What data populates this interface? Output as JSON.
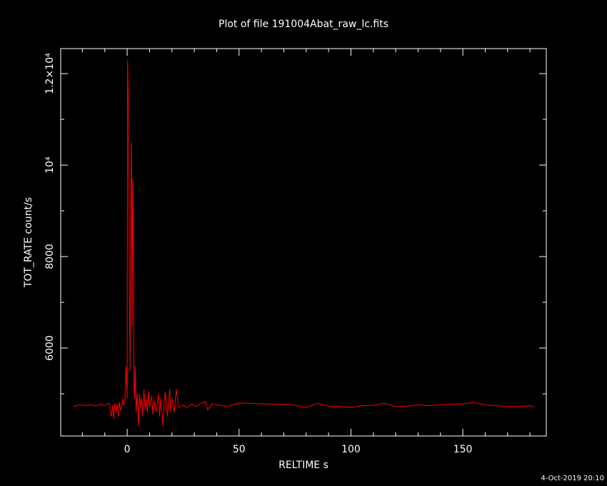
{
  "chart_data": {
    "type": "line",
    "title": "Plot of file 191004Abat_raw_lc.fits",
    "x_label": "RELTIME  s",
    "y_label": "TOT_RATE  count/s",
    "timestamp": "4-Oct-2019 20:10",
    "xlim": [
      -29.7,
      187.3
    ],
    "ylim": [
      4078,
      12547
    ],
    "xticks": [
      0,
      50,
      100,
      150
    ],
    "xminorticks": [
      -20,
      -10,
      10,
      20,
      30,
      40,
      60,
      70,
      80,
      90,
      110,
      120,
      130,
      140,
      160,
      170,
      180
    ],
    "yticks": [
      6000,
      8000,
      {
        "value": 10000,
        "label": "10⁴"
      },
      {
        "value": 12000,
        "label": "1.2×10⁴"
      }
    ],
    "yminorticks": [
      5000,
      7000,
      9000,
      11000
    ],
    "color": "#ff0000",
    "x": [
      -24,
      -22,
      -20,
      -18,
      -16,
      -14,
      -12,
      -10,
      -9,
      -8,
      -7,
      -6.5,
      -6,
      -5.5,
      -5,
      -4.5,
      -4,
      -3.5,
      -3,
      -2.5,
      -2,
      -1.5,
      -1,
      -0.5,
      0,
      0.2,
      0.5,
      0.8,
      1,
      1.3,
      1.6,
      1.9,
      2.2,
      2.5,
      2.8,
      3,
      3.3,
      3.6,
      4,
      4.5,
      5,
      5.5,
      6,
      6.5,
      7,
      7.5,
      8,
      8.5,
      9,
      9.5,
      10,
      11,
      11.5,
      12,
      13,
      14,
      14.5,
      15,
      16,
      16.5,
      17,
      18,
      19,
      19.5,
      20,
      21,
      22,
      23,
      25,
      27,
      29,
      31,
      33,
      35,
      36,
      38,
      40,
      45,
      50,
      55,
      60,
      70,
      75,
      80,
      85,
      90,
      95,
      100,
      105,
      110,
      115,
      120,
      125,
      130,
      135,
      140,
      145,
      150,
      155,
      160,
      165,
      170,
      175,
      180,
      182
    ],
    "values": [
      4720,
      4750,
      4760,
      4740,
      4760,
      4730,
      4770,
      4740,
      4780,
      4790,
      4500,
      4750,
      4450,
      4800,
      4600,
      4780,
      4500,
      4820,
      4650,
      4700,
      4900,
      4750,
      4850,
      5600,
      4900,
      12300,
      11500,
      9500,
      7100,
      5500,
      9000,
      10500,
      6500,
      9700,
      8400,
      5200,
      4900,
      5600,
      4600,
      5000,
      4300,
      5000,
      4700,
      4900,
      4500,
      5100,
      4650,
      4900,
      4600,
      5050,
      4700,
      4950,
      4550,
      4850,
      4600,
      5000,
      4500,
      4900,
      4300,
      4750,
      5050,
      4500,
      5100,
      4600,
      4900,
      4600,
      5100,
      4700,
      4750,
      4700,
      4780,
      4720,
      4800,
      4830,
      4650,
      4780,
      4760,
      4720,
      4800,
      4790,
      4780,
      4770,
      4750,
      4700,
      4790,
      4730,
      4720,
      4700,
      4740,
      4750,
      4790,
      4720,
      4730,
      4760,
      4740,
      4760,
      4770,
      4780,
      4810,
      4760,
      4740,
      4720,
      4720,
      4740,
      4710
    ]
  }
}
